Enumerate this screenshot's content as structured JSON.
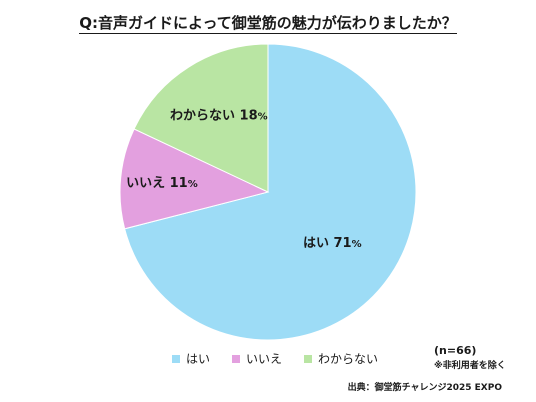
{
  "title": "Q:音声ガイドによって御堂筋の魅力が伝わりましたか？",
  "chart_data": {
    "type": "pie",
    "start": "12 o'clock, clockwise",
    "categories": [
      "はい",
      "いいえ",
      "わからない"
    ],
    "values": [
      71,
      11,
      18
    ],
    "unit": "%",
    "colors": [
      "#9ddcf6",
      "#e3a0df",
      "#b9e5a3"
    ],
    "data_labels": [
      {
        "name": "はい",
        "value": "71",
        "unit": "%"
      },
      {
        "name": "いいえ",
        "value": "11",
        "unit": "%"
      },
      {
        "name": "わからない",
        "value": "18",
        "unit": "%"
      }
    ],
    "legend_position": "bottom"
  },
  "legend": [
    {
      "label": "はい",
      "color": "#9ddcf6"
    },
    {
      "label": "いいえ",
      "color": "#e3a0df"
    },
    {
      "label": "わからない",
      "color": "#b9e5a3"
    }
  ],
  "notes": {
    "sample": "(n=66)",
    "exclusion": "※非利用者を除く"
  },
  "source": "出典：御堂筋チャレンジ2025 EXPO"
}
